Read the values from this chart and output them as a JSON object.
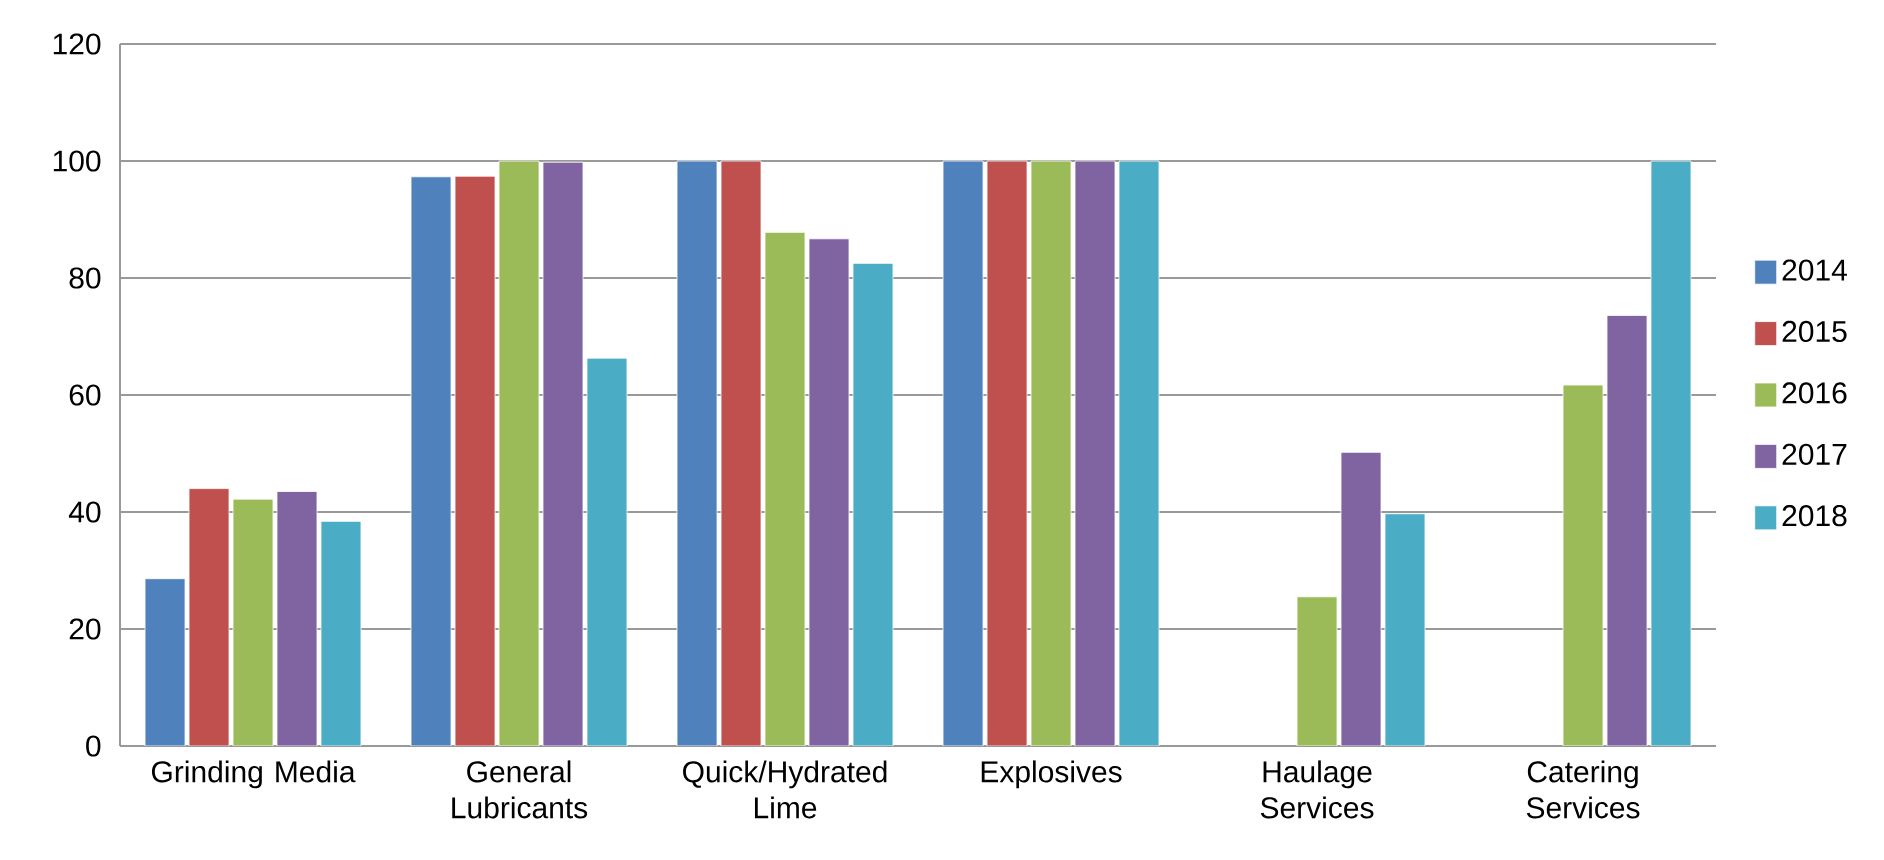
{
  "chart_data": {
    "type": "bar",
    "categories": [
      "Grinding Media",
      "General Lubricants",
      "Quick/Hydrated Lime",
      "Explosives",
      "Haulage Services",
      "Catering Services"
    ],
    "series": [
      {
        "name": "2014",
        "color": "#4f81bd",
        "values": [
          28.6,
          97.3,
          100,
          100,
          null,
          null
        ]
      },
      {
        "name": "2015",
        "color": "#c0504d",
        "values": [
          44.0,
          97.4,
          100,
          100,
          null,
          null
        ]
      },
      {
        "name": "2016",
        "color": "#9bbb59",
        "values": [
          42.2,
          100,
          87.8,
          100,
          25.5,
          61.7
        ]
      },
      {
        "name": "2017",
        "color": "#8064a2",
        "values": [
          43.5,
          99.8,
          86.7,
          100,
          50.2,
          73.6
        ]
      },
      {
        "name": "2018",
        "color": "#4bacc6",
        "values": [
          38.4,
          66.3,
          82.5,
          100,
          39.7,
          100
        ]
      }
    ],
    "ylim": [
      0,
      120
    ],
    "yticks": [
      0,
      20,
      40,
      60,
      80,
      100,
      120
    ],
    "grid": "y",
    "legend": "right"
  }
}
